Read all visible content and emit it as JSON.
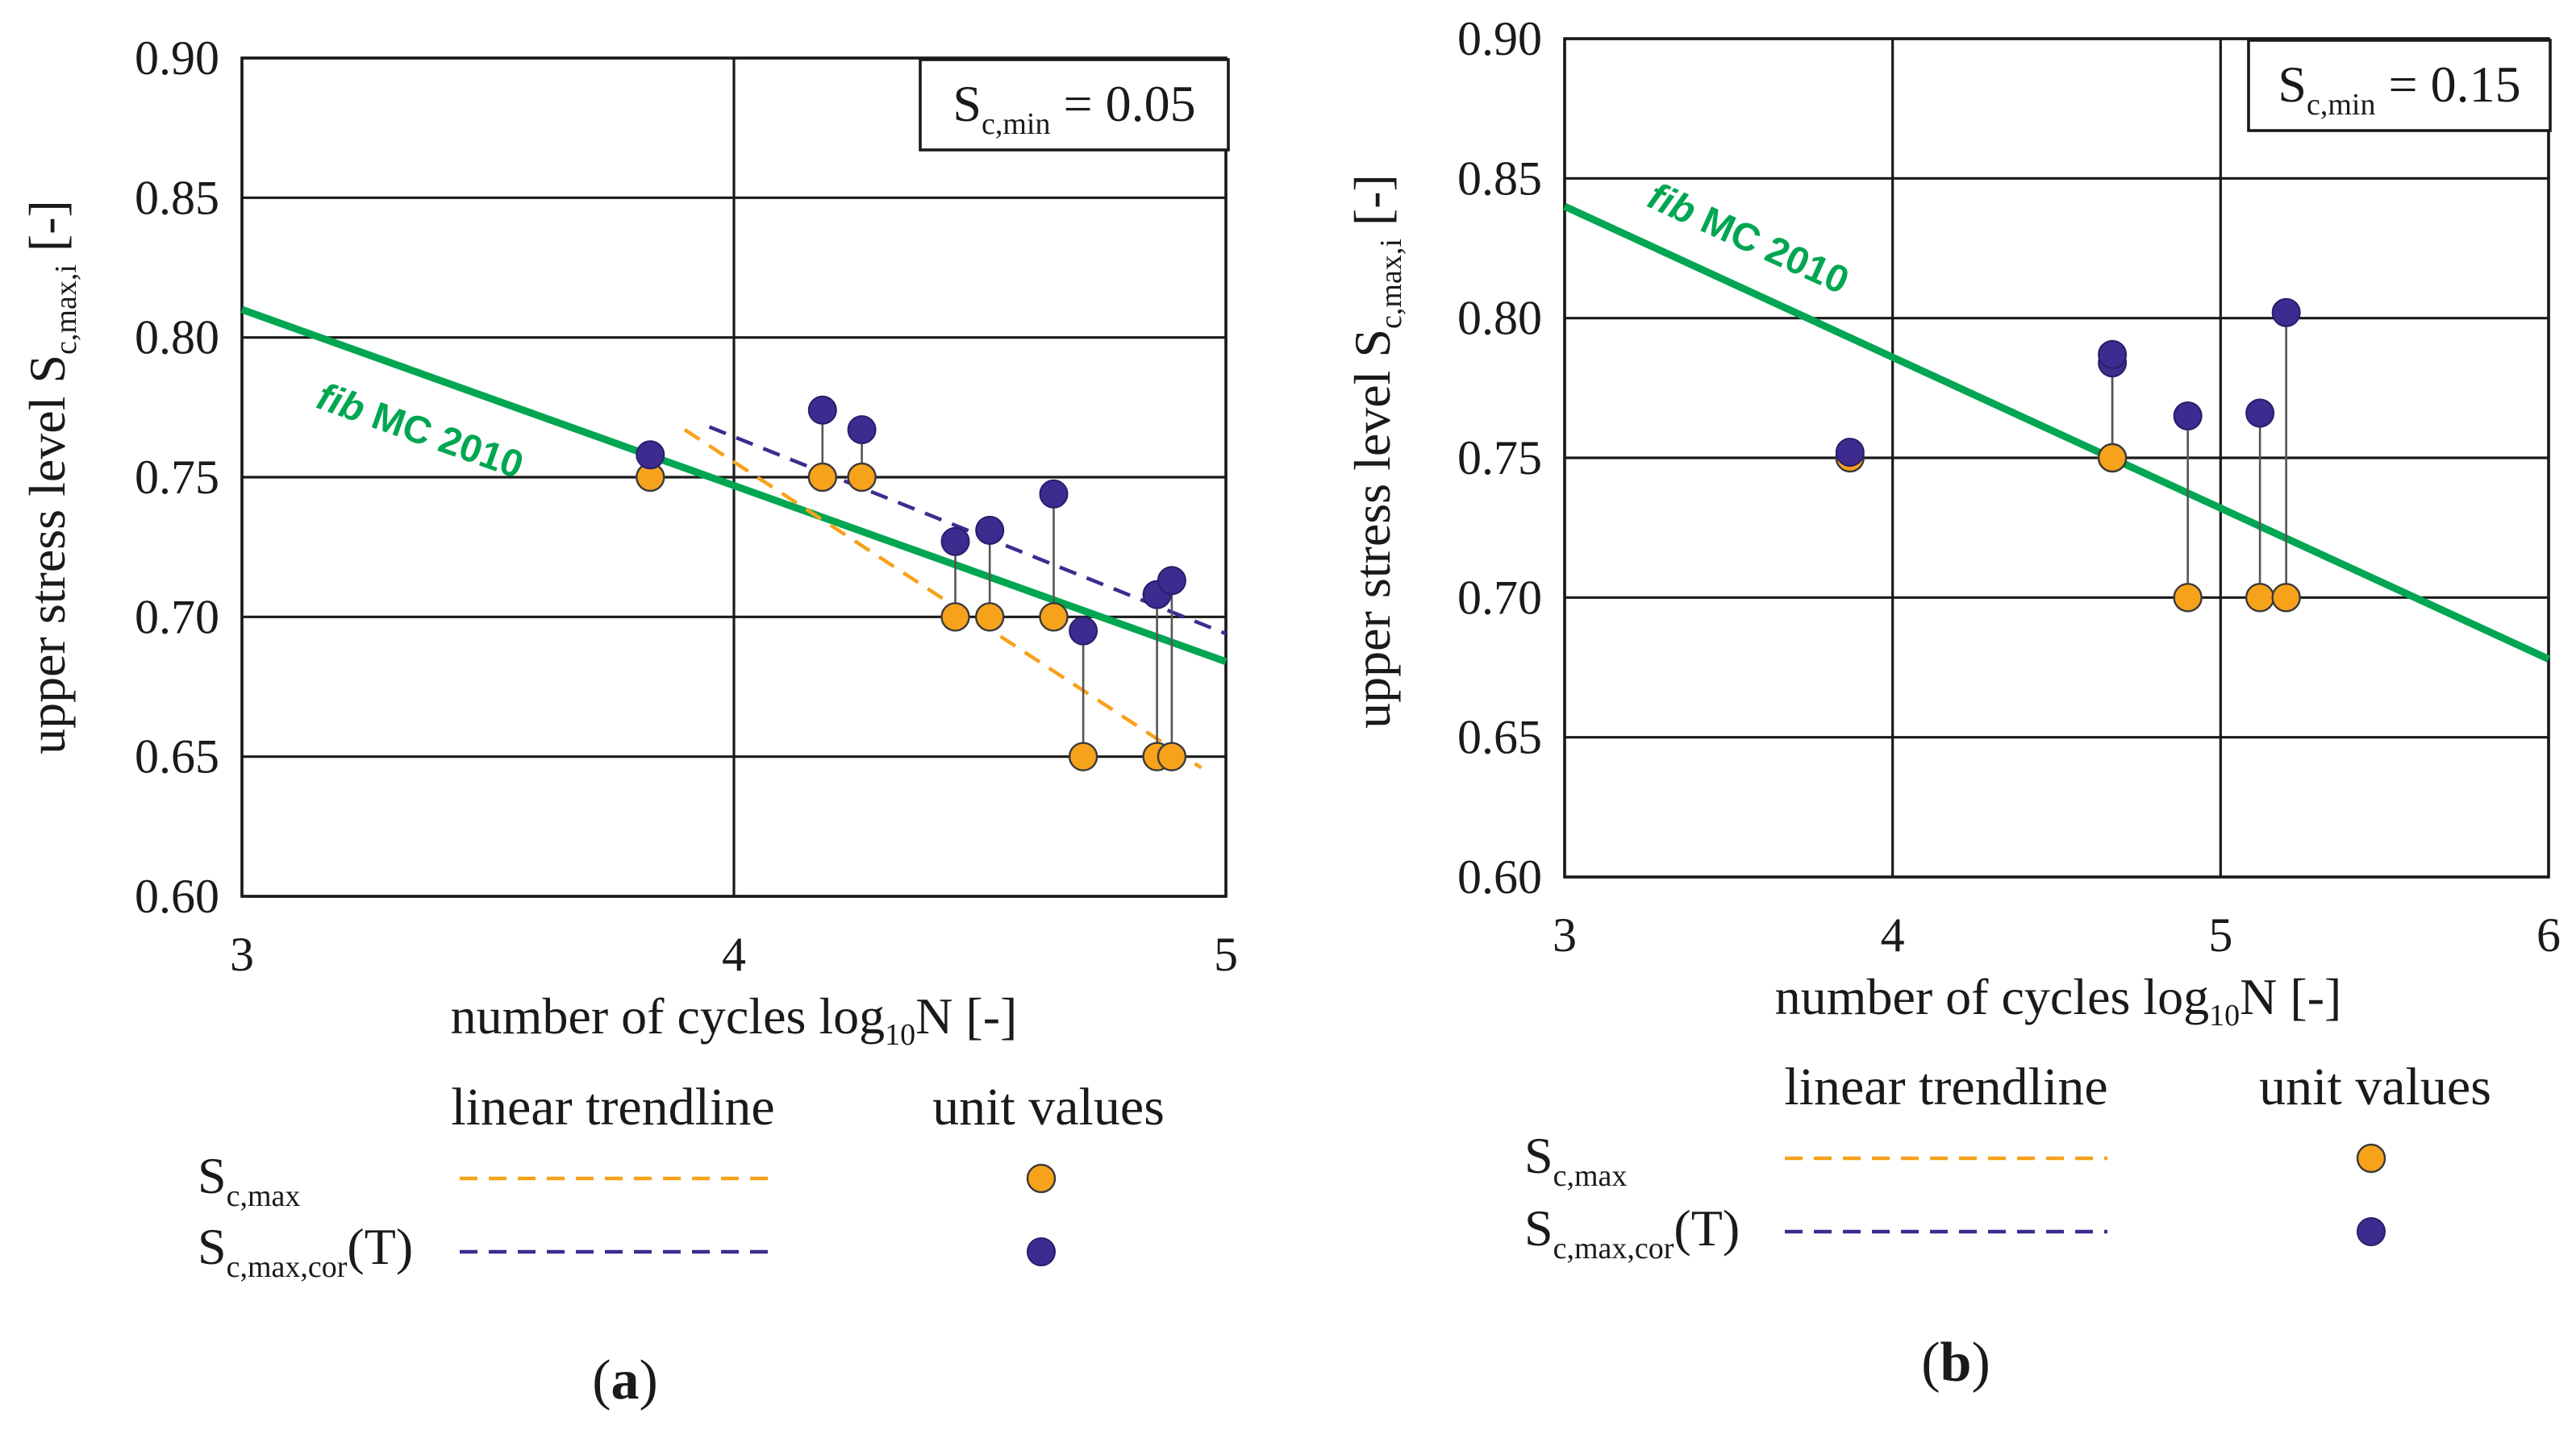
{
  "colors": {
    "fib": "#00a651",
    "orange": "#f7a21b",
    "blue": "#3d2b8f",
    "grid": "#1a1a1a",
    "stem": "#555555"
  },
  "chart_data": [
    {
      "type": "scatter",
      "panel_label": "a",
      "annotation": {
        "prefix": "S",
        "sub": "c,min",
        "value": " = 0.05"
      },
      "xlabel": {
        "main": "number of cycles log",
        "sub": "10",
        "tail": "N [-]"
      },
      "ylabel": {
        "main": "upper stress level S",
        "sub": "c,max,i",
        "tail": " [-]"
      },
      "xlim": [
        3,
        5
      ],
      "ylim": [
        0.6,
        0.9
      ],
      "xticks": [
        "3",
        "4",
        "5"
      ],
      "yticks": [
        "0.60",
        "0.65",
        "0.70",
        "0.75",
        "0.80",
        "0.85",
        "0.90"
      ],
      "fib_label": {
        "italic": "fib",
        "rest": " MC 2010"
      },
      "fib_line": {
        "x": [
          3,
          5
        ],
        "y": [
          0.81,
          0.684
        ]
      },
      "trend_scmax": {
        "x": [
          3.9,
          4.95
        ],
        "y": [
          0.767,
          0.646
        ]
      },
      "trend_scor": {
        "x": [
          3.95,
          5.0
        ],
        "y": [
          0.768,
          0.694
        ]
      },
      "points": [
        {
          "x": 3.83,
          "s_max": 0.75,
          "s_cor": 0.758
        },
        {
          "x": 4.18,
          "s_max": 0.75,
          "s_cor": 0.774
        },
        {
          "x": 4.26,
          "s_max": 0.75,
          "s_cor": 0.767
        },
        {
          "x": 4.45,
          "s_max": 0.7,
          "s_cor": 0.727
        },
        {
          "x": 4.52,
          "s_max": 0.7,
          "s_cor": 0.731
        },
        {
          "x": 4.65,
          "s_max": 0.7,
          "s_cor": 0.744
        },
        {
          "x": 4.71,
          "s_max": 0.65,
          "s_cor": 0.695
        },
        {
          "x": 4.86,
          "s_max": 0.65,
          "s_cor": 0.708
        },
        {
          "x": 4.89,
          "s_max": 0.65,
          "s_cor": 0.713
        }
      ]
    },
    {
      "type": "scatter",
      "panel_label": "b",
      "annotation": {
        "prefix": "S",
        "sub": "c,min",
        "value": " = 0.15"
      },
      "xlabel": {
        "main": "number of cycles log",
        "sub": "10",
        "tail": "N [-]"
      },
      "ylabel": {
        "main": "upper stress level S",
        "sub": "c,max,i",
        "tail": " [-]"
      },
      "xlim": [
        3,
        6
      ],
      "ylim": [
        0.6,
        0.9
      ],
      "xticks": [
        "3",
        "4",
        "5",
        "6"
      ],
      "yticks": [
        "0.60",
        "0.65",
        "0.70",
        "0.75",
        "0.80",
        "0.85",
        "0.90"
      ],
      "fib_label": {
        "italic": "fib",
        "rest": " MC 2010"
      },
      "fib_line": {
        "x": [
          3,
          6
        ],
        "y": [
          0.84,
          0.678
        ]
      },
      "points": [
        {
          "x": 3.87,
          "s_max": 0.75,
          "s_cor": 0.752
        },
        {
          "x": 4.67,
          "s_max": 0.75,
          "s_cor": 0.784
        },
        {
          "x": 4.67,
          "s_max": 0.75,
          "s_cor": 0.787
        },
        {
          "x": 4.9,
          "s_max": 0.7,
          "s_cor": 0.765
        },
        {
          "x": 5.12,
          "s_max": 0.7,
          "s_cor": 0.766
        },
        {
          "x": 5.2,
          "s_max": 0.7,
          "s_cor": 0.802
        }
      ]
    }
  ],
  "legend": {
    "header_trend": "linear trendline",
    "header_unit": "unit values",
    "row1": {
      "main": "S",
      "sub": "c,max",
      "tail": ""
    },
    "row2": {
      "main": "S",
      "sub": "c,max,cor",
      "tail": "(T)"
    }
  }
}
